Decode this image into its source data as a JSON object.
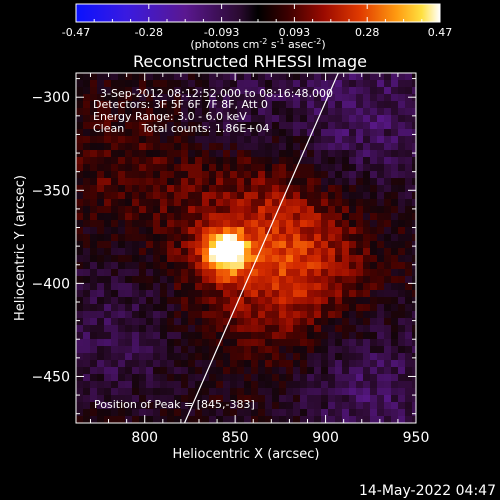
{
  "colorbar": {
    "ticks": [
      "-0.47",
      "-0.28",
      "-0.093",
      "0.093",
      "0.28",
      "0.47"
    ],
    "unit_label": {
      "prefix": "(photons cm",
      "exp1": "-2",
      "mid": " s",
      "exp2": "-1",
      "mid2": " asec",
      "exp3": "-2",
      "suffix": ")"
    },
    "range": [
      -0.47,
      0.47
    ],
    "colors": [
      "#0a12ff",
      "#5a1ac8",
      "#3a0a3a",
      "#000000",
      "#4a0000",
      "#b01000",
      "#ff6a00",
      "#ffe640",
      "#ffffff"
    ]
  },
  "image": {
    "title": "Reconstructed RHESSI Image",
    "annotations": {
      "time_range": "3-Sep-2012 08:12:52.000 to 08:16:48.000",
      "detectors": "Detectors: 3F 5F 6F 7F 8F, Att 0",
      "energy": "Energy Range: 3.0 - 6.0 keV",
      "clean": "Clean     Total counts: 1.86E+04",
      "peak": "Position of Peak = [845,-383]"
    },
    "x_axis": {
      "title": "Heliocentric X (arcsec)",
      "range": [
        762,
        950
      ],
      "ticks": [
        800,
        850,
        900,
        950
      ]
    },
    "y_axis": {
      "title": "Heliocentric Y (arcsec)",
      "range": [
        -475,
        -287
      ],
      "ticks": [
        -300,
        -350,
        -400,
        -450
      ],
      "tick_labels": [
        "−300",
        "−350",
        "−400",
        "−450"
      ]
    },
    "peak_position": [
      845,
      -383
    ],
    "limb_line": [
      [
        822,
        -475
      ],
      [
        907,
        -287
      ]
    ]
  },
  "footer": {
    "date": "14-May-2022 04:47"
  }
}
